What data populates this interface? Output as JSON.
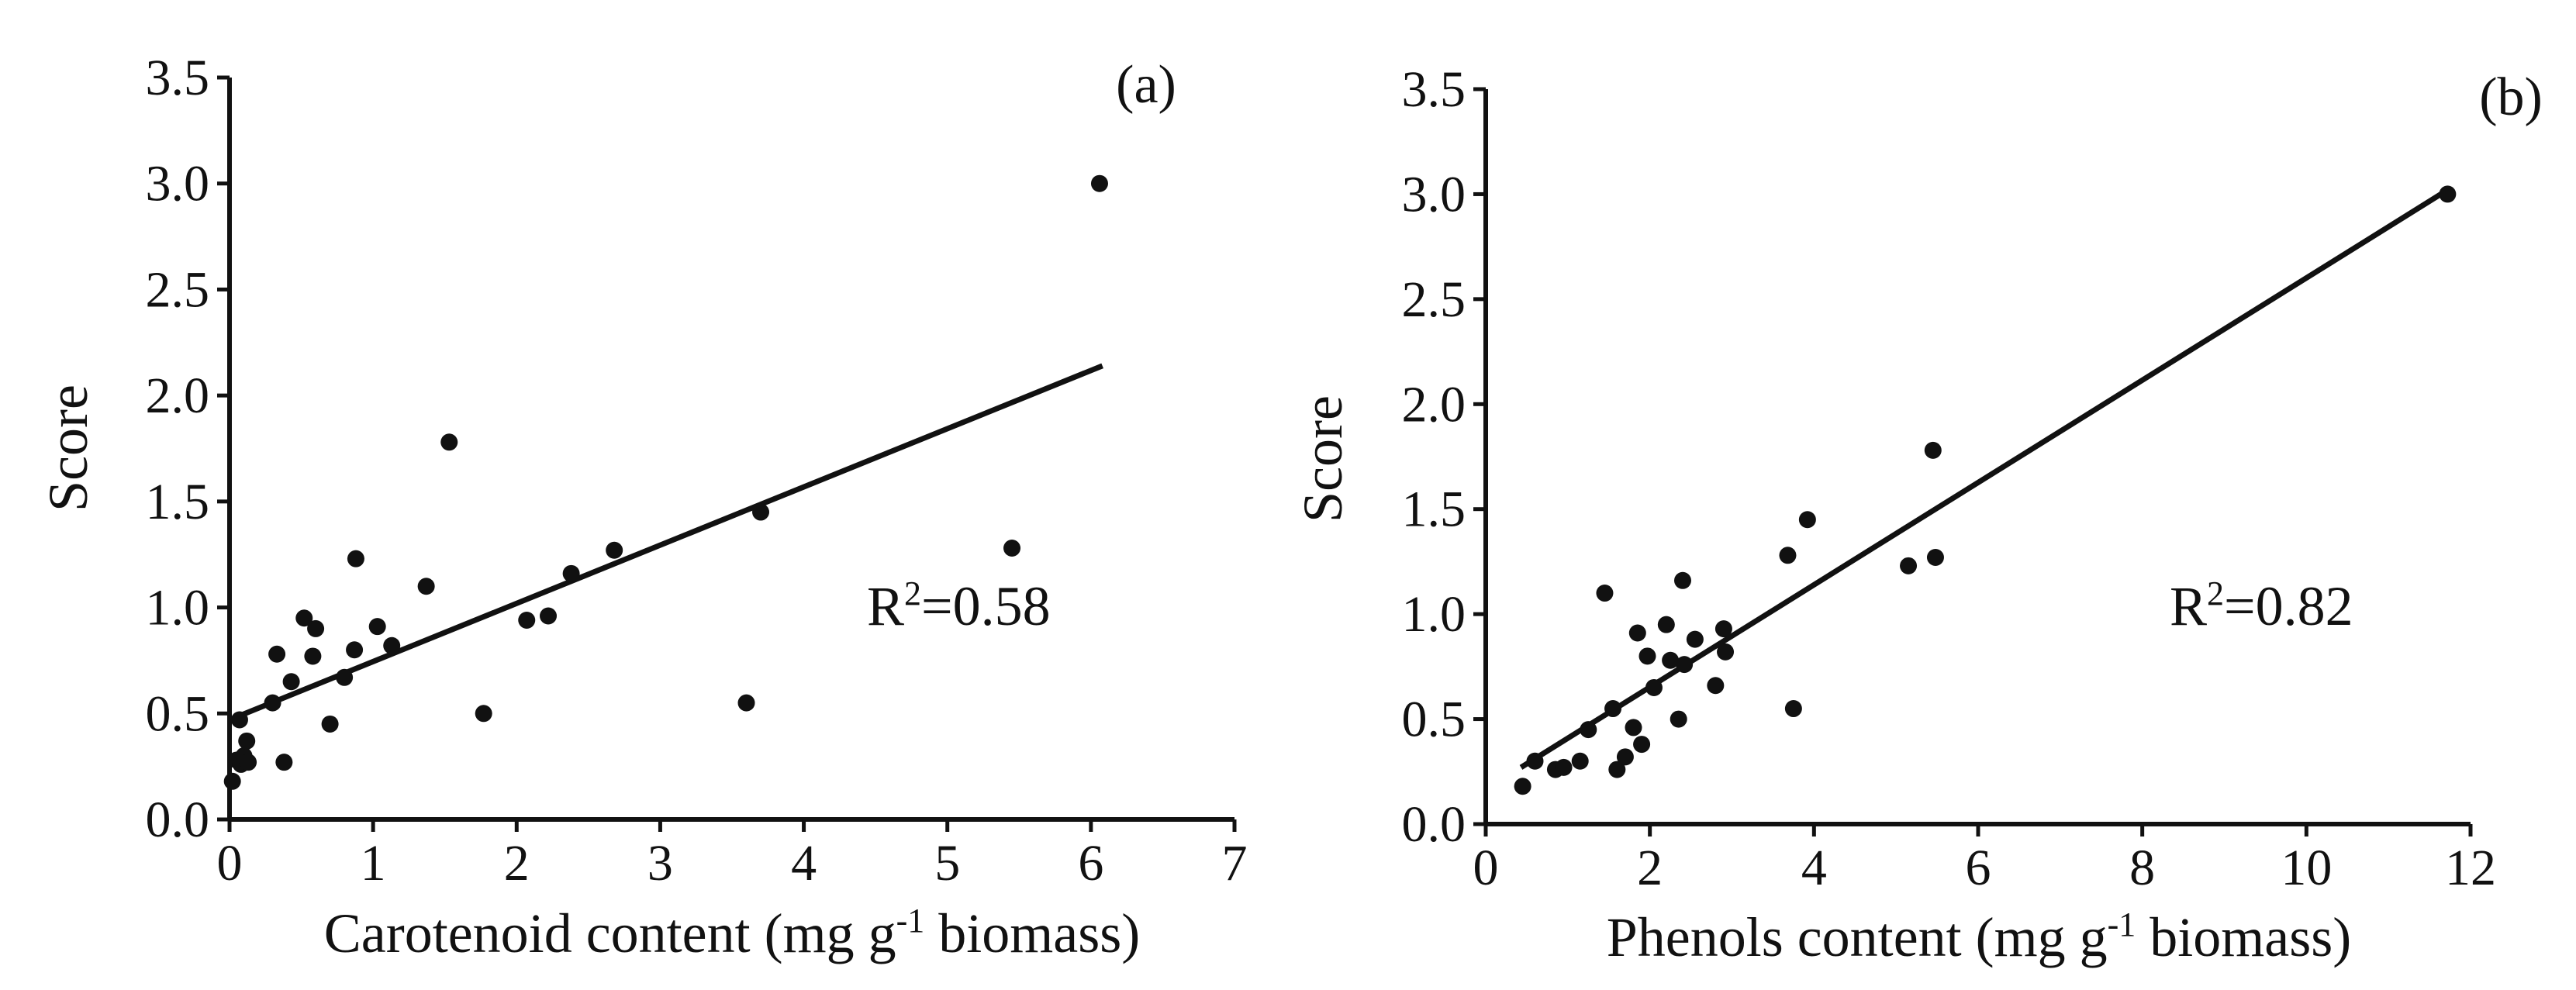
{
  "chart_data": [
    {
      "type": "scatter",
      "panel_label": "(a)",
      "title": "",
      "xlabel": "Carotenoid content (mg g",
      "xlabel_sup": "-1",
      "xlabel_tail": " biomass)",
      "ylabel": "Score",
      "xlim": [
        0,
        7
      ],
      "ylim": [
        0,
        3.5
      ],
      "xticks": [
        0,
        1,
        2,
        3,
        4,
        5,
        6,
        7
      ],
      "xtick_labels": [
        "0",
        "1",
        "2",
        "3",
        "4",
        "5",
        "6",
        "7"
      ],
      "yticks": [
        0,
        0.5,
        1,
        1.5,
        2,
        2.5,
        3,
        3.5
      ],
      "ytick_labels": [
        "0.0",
        "0.5",
        "1.0",
        "1.5",
        "2.0",
        "2.5",
        "3.0",
        "3.5"
      ],
      "grid": false,
      "annotation": {
        "prefix": "R",
        "sup": "2",
        "suffix": "=0.58"
      },
      "trendline": {
        "x": [
          0,
          6.08
        ],
        "y": [
          0.47,
          2.14
        ]
      },
      "points": [
        {
          "x": 0.02,
          "y": 0.18
        },
        {
          "x": 0.05,
          "y": 0.28
        },
        {
          "x": 0.07,
          "y": 0.47
        },
        {
          "x": 0.08,
          "y": 0.26
        },
        {
          "x": 0.1,
          "y": 0.3
        },
        {
          "x": 0.12,
          "y": 0.37
        },
        {
          "x": 0.13,
          "y": 0.27
        },
        {
          "x": 0.3,
          "y": 0.55
        },
        {
          "x": 0.33,
          "y": 0.78
        },
        {
          "x": 0.38,
          "y": 0.27
        },
        {
          "x": 0.43,
          "y": 0.65
        },
        {
          "x": 0.52,
          "y": 0.95
        },
        {
          "x": 0.58,
          "y": 0.77
        },
        {
          "x": 0.6,
          "y": 0.9
        },
        {
          "x": 0.7,
          "y": 0.45
        },
        {
          "x": 0.8,
          "y": 0.67
        },
        {
          "x": 0.87,
          "y": 0.8
        },
        {
          "x": 0.88,
          "y": 1.23
        },
        {
          "x": 1.03,
          "y": 0.91
        },
        {
          "x": 1.13,
          "y": 0.82
        },
        {
          "x": 1.37,
          "y": 1.1
        },
        {
          "x": 1.53,
          "y": 1.78
        },
        {
          "x": 1.77,
          "y": 0.5
        },
        {
          "x": 2.07,
          "y": 0.94
        },
        {
          "x": 2.22,
          "y": 0.96
        },
        {
          "x": 2.38,
          "y": 1.16
        },
        {
          "x": 2.68,
          "y": 1.27
        },
        {
          "x": 3.6,
          "y": 0.55
        },
        {
          "x": 3.7,
          "y": 1.45
        },
        {
          "x": 5.45,
          "y": 1.28
        },
        {
          "x": 6.06,
          "y": 3.0
        }
      ]
    },
    {
      "type": "scatter",
      "panel_label": "(b)",
      "title": "",
      "xlabel": "Phenols content (mg g",
      "xlabel_sup": "-1",
      "xlabel_tail": " biomass)",
      "ylabel": "Score",
      "xlim": [
        0,
        12
      ],
      "ylim": [
        0,
        3.5
      ],
      "xticks": [
        0,
        2,
        4,
        6,
        8,
        10,
        12
      ],
      "xtick_labels": [
        "0",
        "2",
        "4",
        "6",
        "8",
        "10",
        "12"
      ],
      "yticks": [
        0,
        0.5,
        1,
        1.5,
        2,
        2.5,
        3,
        3.5
      ],
      "ytick_labels": [
        "0.0",
        "0.5",
        "1.0",
        "1.5",
        "2.0",
        "2.5",
        "3.0",
        "3.5"
      ],
      "grid": false,
      "annotation": {
        "prefix": "R",
        "sup": "2",
        "suffix": "=0.82"
      },
      "trendline": {
        "x": [
          0.43,
          11.72
        ],
        "y": [
          0.27,
          3.02
        ]
      },
      "points": [
        {
          "x": 0.45,
          "y": 0.18
        },
        {
          "x": 0.6,
          "y": 0.3
        },
        {
          "x": 0.85,
          "y": 0.26
        },
        {
          "x": 0.95,
          "y": 0.27
        },
        {
          "x": 1.15,
          "y": 0.3
        },
        {
          "x": 1.25,
          "y": 0.45
        },
        {
          "x": 1.45,
          "y": 1.1
        },
        {
          "x": 1.55,
          "y": 0.55
        },
        {
          "x": 1.6,
          "y": 0.26
        },
        {
          "x": 1.7,
          "y": 0.32
        },
        {
          "x": 1.8,
          "y": 0.46
        },
        {
          "x": 1.85,
          "y": 0.91
        },
        {
          "x": 1.9,
          "y": 0.38
        },
        {
          "x": 1.97,
          "y": 0.8
        },
        {
          "x": 2.05,
          "y": 0.65
        },
        {
          "x": 2.2,
          "y": 0.95
        },
        {
          "x": 2.25,
          "y": 0.78
        },
        {
          "x": 2.35,
          "y": 0.5
        },
        {
          "x": 2.4,
          "y": 1.16
        },
        {
          "x": 2.42,
          "y": 0.76
        },
        {
          "x": 2.55,
          "y": 0.88
        },
        {
          "x": 2.8,
          "y": 0.66
        },
        {
          "x": 2.9,
          "y": 0.93
        },
        {
          "x": 2.92,
          "y": 0.82
        },
        {
          "x": 3.68,
          "y": 1.28
        },
        {
          "x": 3.75,
          "y": 0.55
        },
        {
          "x": 3.92,
          "y": 1.45
        },
        {
          "x": 5.15,
          "y": 1.23
        },
        {
          "x": 5.45,
          "y": 1.78
        },
        {
          "x": 5.48,
          "y": 1.27
        },
        {
          "x": 11.72,
          "y": 3.0
        }
      ]
    }
  ]
}
